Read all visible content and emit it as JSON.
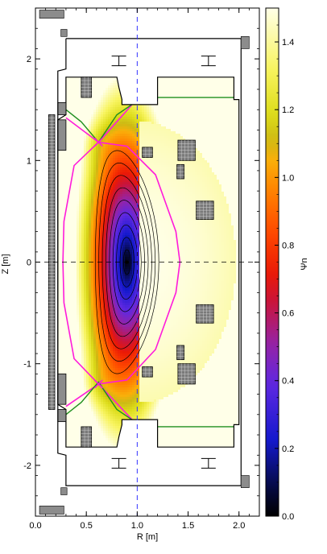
{
  "chart_data": {
    "type": "heatmap",
    "title": "",
    "xlabel": "R [m]",
    "ylabel": "Z [m]",
    "colorbar_label": "Ψn",
    "xlim": [
      0.0,
      2.2
    ],
    "ylim": [
      -2.5,
      2.5
    ],
    "x_ticks": [
      0.0,
      0.5,
      1.0,
      1.5,
      2.0
    ],
    "x_tick_labels": [
      "0.0",
      "0.5",
      "1.0",
      "1.5",
      "2.0"
    ],
    "y_ticks": [
      -2,
      -1,
      0,
      1,
      2
    ],
    "y_tick_labels": [
      "-2",
      "-1",
      "0",
      "1",
      "2"
    ],
    "colorbar_range": [
      0.0,
      1.5
    ],
    "colorbar_ticks": [
      0.0,
      0.2,
      0.4,
      0.6,
      0.8,
      1.0,
      1.2,
      1.4
    ],
    "colorbar_tick_labels": [
      "0.0",
      "0.2",
      "0.4",
      "0.6",
      "0.8",
      "1.0",
      "1.2",
      "1.4"
    ],
    "magnetic_axis": {
      "R": 0.9,
      "Z": 0.0
    },
    "x_points": [
      {
        "R": 0.62,
        "Z": 1.18
      },
      {
        "R": 0.62,
        "Z": -1.2
      }
    ],
    "reference_lines": {
      "R": 1.0,
      "Z": 0.0
    },
    "grid": false,
    "colors": {
      "separatrix": "#ff1adb",
      "contour_psi_1": "#1f8f1f",
      "flux_contours": "#000000",
      "reference_lines": "#3333ff"
    }
  }
}
